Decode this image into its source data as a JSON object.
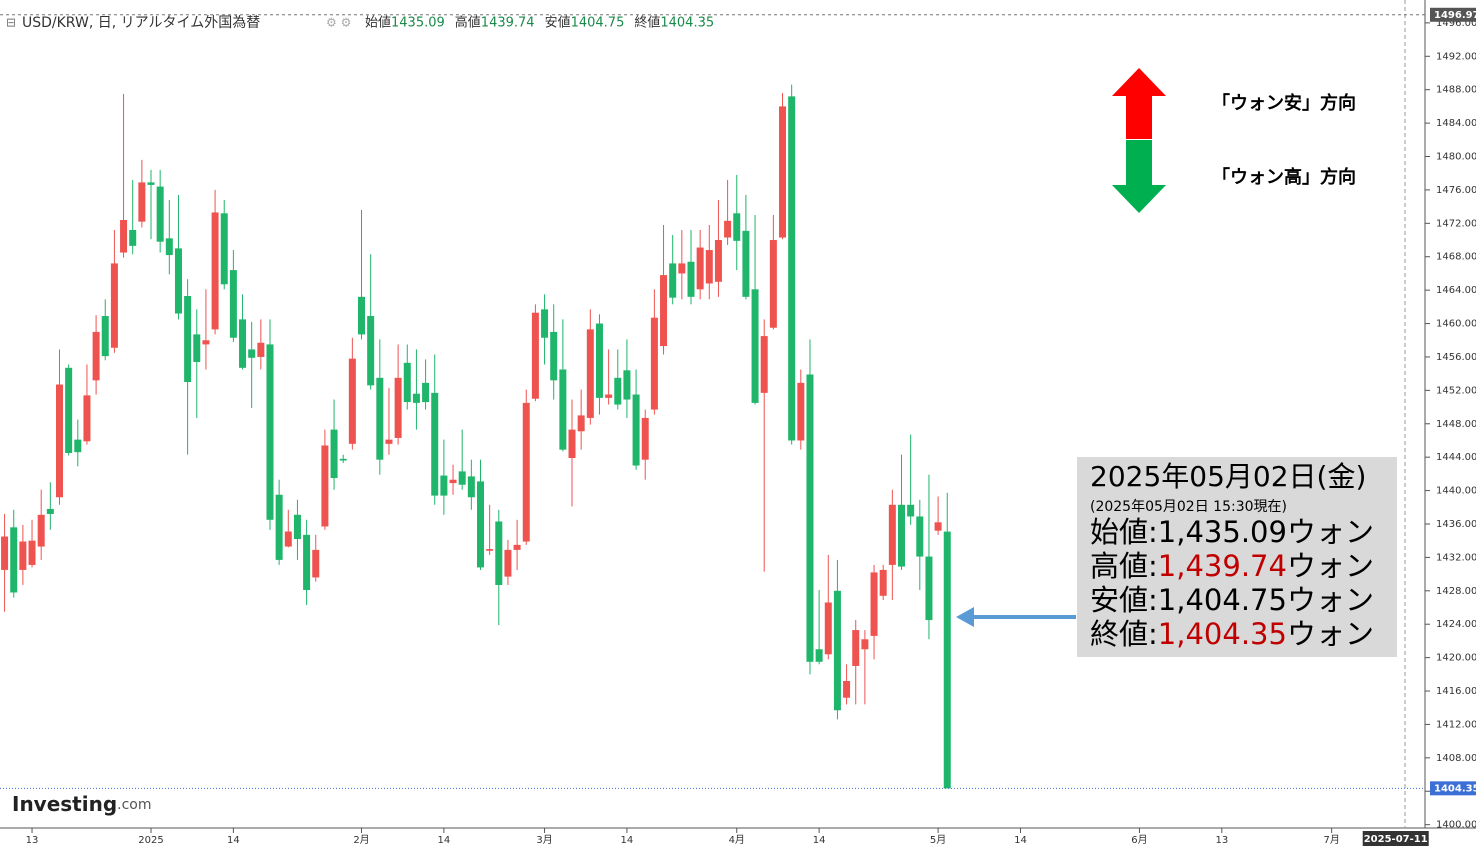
{
  "chart_data": {
    "type": "candlestick",
    "title": "USD/KRW, 日, リアルタイム外国為替",
    "quote_labels": [
      "始値",
      "高値",
      "安値",
      "終値"
    ],
    "x": [
      0,
      1,
      2,
      3,
      4,
      5,
      6,
      7,
      8,
      9,
      10,
      11,
      12,
      13,
      14,
      15,
      16,
      17,
      18,
      19,
      20,
      21,
      22,
      23,
      24,
      25,
      26,
      27,
      28,
      29,
      30,
      31,
      32,
      33,
      34,
      35,
      36,
      37,
      38,
      39,
      40,
      41,
      42,
      43,
      44,
      45,
      46,
      47,
      48,
      49,
      50,
      51,
      52,
      53,
      54,
      55,
      56,
      57,
      58,
      59,
      60,
      61,
      62,
      63,
      64,
      65,
      66,
      67,
      68,
      69,
      70,
      71,
      72,
      73,
      74,
      75,
      76,
      77,
      78,
      79,
      80,
      81,
      82,
      83,
      84,
      85,
      86,
      87,
      88,
      89,
      90,
      91,
      92,
      93,
      94,
      95,
      96,
      97,
      98,
      99,
      100,
      101,
      102,
      103
    ],
    "ohlc": [
      [
        1430.5,
        1437.2,
        1425.5,
        1434.5
      ],
      [
        1435.6,
        1437.7,
        1427.2,
        1427.8
      ],
      [
        1430.5,
        1435.9,
        1428.7,
        1433.9
      ],
      [
        1431.1,
        1436.5,
        1430.8,
        1434.0
      ],
      [
        1433.3,
        1440.1,
        1431.7,
        1437.1
      ],
      [
        1437.8,
        1441.0,
        1435.3,
        1437.2
      ],
      [
        1439.2,
        1456.9,
        1438.3,
        1452.7
      ],
      [
        1454.7,
        1455.1,
        1444.2,
        1444.5
      ],
      [
        1446.1,
        1448.5,
        1442.9,
        1444.6
      ],
      [
        1445.9,
        1455.1,
        1445.5,
        1451.4
      ],
      [
        1453.2,
        1461.0,
        1451.5,
        1459.0
      ],
      [
        1460.9,
        1462.9,
        1455.6,
        1456.1
      ],
      [
        1457.1,
        1471.2,
        1456.5,
        1467.2
      ],
      [
        1468.5,
        1487.5,
        1467.9,
        1472.4
      ],
      [
        1471.2,
        1477.2,
        1468.3,
        1469.3
      ],
      [
        1472.2,
        1479.6,
        1471.5,
        1476.9
      ],
      [
        1476.9,
        1478.4,
        1470.1,
        1476.6
      ],
      [
        1476.4,
        1478.4,
        1468.5,
        1469.8
      ],
      [
        1470.2,
        1474.8,
        1465.9,
        1468.2
      ],
      [
        1469.0,
        1475.4,
        1460.5,
        1461.2
      ],
      [
        1463.3,
        1465.3,
        1444.3,
        1453.0
      ],
      [
        1458.7,
        1461.7,
        1448.7,
        1455.4
      ],
      [
        1457.5,
        1464.1,
        1454.5,
        1458.0
      ],
      [
        1459.3,
        1476.0,
        1458.7,
        1473.3
      ],
      [
        1473.2,
        1474.8,
        1464.1,
        1464.7
      ],
      [
        1466.4,
        1468.8,
        1457.8,
        1458.3
      ],
      [
        1460.5,
        1463.5,
        1454.5,
        1454.7
      ],
      [
        1456.9,
        1460.2,
        1449.9,
        1455.9
      ],
      [
        1456.0,
        1460.5,
        1454.5,
        1457.7
      ],
      [
        1457.5,
        1460.5,
        1435.3,
        1436.5
      ],
      [
        1439.5,
        1441.3,
        1431.1,
        1431.7
      ],
      [
        1433.3,
        1437.7,
        1433.2,
        1435.1
      ],
      [
        1437.1,
        1438.9,
        1431.7,
        1434.2
      ],
      [
        1434.7,
        1436.5,
        1426.3,
        1428.1
      ],
      [
        1429.6,
        1434.7,
        1429.1,
        1432.9
      ],
      [
        1435.7,
        1447.3,
        1435.3,
        1445.4
      ],
      [
        1447.3,
        1450.9,
        1440.1,
        1441.5
      ],
      [
        1443.8,
        1444.3,
        1443.3,
        1443.6
      ],
      [
        1445.6,
        1458.3,
        1444.9,
        1455.8
      ],
      [
        1463.2,
        1473.6,
        1458.1,
        1458.7
      ],
      [
        1460.9,
        1468.3,
        1452.1,
        1452.6
      ],
      [
        1453.5,
        1458.1,
        1441.9,
        1443.7
      ],
      [
        1445.6,
        1452.3,
        1444.3,
        1446.1
      ],
      [
        1446.3,
        1457.5,
        1445.5,
        1453.5
      ],
      [
        1455.3,
        1457.5,
        1449.7,
        1450.6
      ],
      [
        1451.6,
        1456.9,
        1447.3,
        1450.5
      ],
      [
        1452.9,
        1455.7,
        1449.7,
        1450.6
      ],
      [
        1451.7,
        1456.3,
        1438.3,
        1439.4
      ],
      [
        1441.8,
        1446.1,
        1437.1,
        1439.4
      ],
      [
        1440.9,
        1443.1,
        1439.5,
        1441.3
      ],
      [
        1442.3,
        1447.3,
        1440.1,
        1440.7
      ],
      [
        1441.7,
        1443.7,
        1437.7,
        1439.2
      ],
      [
        1441.1,
        1443.7,
        1430.5,
        1430.8
      ],
      [
        1432.8,
        1438.3,
        1432.3,
        1433.0
      ],
      [
        1436.3,
        1437.7,
        1423.9,
        1428.7
      ],
      [
        1429.7,
        1434.1,
        1428.7,
        1432.9
      ],
      [
        1432.9,
        1436.5,
        1430.5,
        1433.5
      ],
      [
        1433.9,
        1452.1,
        1433.5,
        1450.5
      ],
      [
        1451.0,
        1462.3,
        1450.7,
        1461.3
      ],
      [
        1461.7,
        1463.5,
        1455.1,
        1458.3
      ],
      [
        1459.0,
        1462.3,
        1450.9,
        1453.2
      ],
      [
        1454.5,
        1460.5,
        1444.7,
        1444.9
      ],
      [
        1443.9,
        1450.9,
        1438.1,
        1447.3
      ],
      [
        1447.1,
        1452.1,
        1444.9,
        1449.0
      ],
      [
        1448.7,
        1461.7,
        1447.9,
        1459.3
      ],
      [
        1460.0,
        1461.1,
        1449.1,
        1451.1
      ],
      [
        1451.1,
        1456.9,
        1450.3,
        1451.5
      ],
      [
        1453.5,
        1456.9,
        1449.7,
        1450.3
      ],
      [
        1454.4,
        1458.1,
        1448.7,
        1450.9
      ],
      [
        1451.5,
        1454.5,
        1442.5,
        1443.0
      ],
      [
        1443.7,
        1449.7,
        1441.3,
        1448.7
      ],
      [
        1449.7,
        1464.1,
        1449.1,
        1460.7
      ],
      [
        1457.3,
        1471.8,
        1456.3,
        1465.8
      ],
      [
        1467.2,
        1470.6,
        1462.3,
        1463.1
      ],
      [
        1466.0,
        1471.2,
        1462.9,
        1467.2
      ],
      [
        1467.4,
        1471.2,
        1462.3,
        1463.2
      ],
      [
        1464.1,
        1471.2,
        1462.9,
        1469.1
      ],
      [
        1464.8,
        1471.8,
        1462.9,
        1468.8
      ],
      [
        1465.0,
        1474.8,
        1463.2,
        1470.0
      ],
      [
        1470.3,
        1477.2,
        1469.4,
        1472.3
      ],
      [
        1473.2,
        1477.8,
        1466.4,
        1469.9
      ],
      [
        1471.1,
        1475.4,
        1462.9,
        1463.2
      ],
      [
        1464.1,
        1473.0,
        1450.3,
        1450.5
      ],
      [
        1451.7,
        1460.5,
        1430.3,
        1458.5
      ],
      [
        1459.5,
        1473.0,
        1459.3,
        1470.0
      ],
      [
        1470.3,
        1487.6,
        1470.1,
        1486.0
      ],
      [
        1487.2,
        1488.6,
        1445.5,
        1446.0
      ],
      [
        1446.0,
        1454.5,
        1444.9,
        1452.9
      ],
      [
        1453.9,
        1458.1,
        1418.0,
        1419.5
      ],
      [
        1421.0,
        1428.1,
        1419.2,
        1419.5
      ],
      [
        1420.4,
        1432.3,
        1419.8,
        1426.6
      ],
      [
        1428.0,
        1431.7,
        1412.6,
        1413.7
      ],
      [
        1415.2,
        1419.2,
        1414.4,
        1417.2
      ],
      [
        1419.0,
        1424.5,
        1414.4,
        1423.3
      ],
      [
        1421.0,
        1423.3,
        1414.4,
        1422.2
      ],
      [
        1422.6,
        1431.1,
        1419.8,
        1430.2
      ],
      [
        1427.4,
        1431.1,
        1426.9,
        1430.5
      ],
      [
        1431.1,
        1440.1,
        1426.9,
        1438.3
      ],
      [
        1438.3,
        1444.3,
        1430.5,
        1430.9
      ],
      [
        1438.3,
        1446.7,
        1435.9,
        1436.9
      ],
      [
        1436.9,
        1438.9,
        1428.1,
        1432.1
      ],
      [
        1432.1,
        1441.9,
        1422.2,
        1424.5
      ],
      [
        1435.2,
        1439.3,
        1434.7,
        1436.2
      ],
      [
        1435.09,
        1439.74,
        1404.75,
        1404.35
      ]
    ],
    "up_color": "#ef5350",
    "down_color": "#1fb56b",
    "xlim": [
      -0.5,
      155.2
    ],
    "xticks": [
      {
        "value": 3,
        "label": "13"
      },
      {
        "value": 16,
        "label": "2025"
      },
      {
        "value": 25,
        "label": "14"
      },
      {
        "value": 39,
        "label": "2月"
      },
      {
        "value": 48,
        "label": "14"
      },
      {
        "value": 59,
        "label": "3月"
      },
      {
        "value": 68,
        "label": "14"
      },
      {
        "value": 80,
        "label": "4月"
      },
      {
        "value": 89,
        "label": "14"
      },
      {
        "value": 102,
        "label": "5月"
      },
      {
        "value": 111,
        "label": "14"
      },
      {
        "value": 124,
        "label": "6月"
      },
      {
        "value": 133,
        "label": "13"
      },
      {
        "value": 145,
        "label": "7月"
      }
    ],
    "x_marker": {
      "value": 152,
      "label": "2025-07-11"
    },
    "ylim": [
      1399.6,
      1498.5
    ],
    "yticks": [
      {
        "value": 1400,
        "label": "1400.00"
      },
      {
        "value": 1404,
        "label": "1404.00"
      },
      {
        "value": 1408,
        "label": "1408.00"
      },
      {
        "value": 1412,
        "label": "1412.00"
      },
      {
        "value": 1416,
        "label": "1416.00"
      },
      {
        "value": 1420,
        "label": "1420.00"
      },
      {
        "value": 1424,
        "label": "1424.00"
      },
      {
        "value": 1428,
        "label": "1428.00"
      },
      {
        "value": 1432,
        "label": "1432.00"
      },
      {
        "value": 1436,
        "label": "1436.00"
      },
      {
        "value": 1440,
        "label": "1440.00"
      },
      {
        "value": 1444,
        "label": "1444.00"
      },
      {
        "value": 1448,
        "label": "1448.00"
      },
      {
        "value": 1452,
        "label": "1452.00"
      },
      {
        "value": 1456,
        "label": "1456.00"
      },
      {
        "value": 1460,
        "label": "1460.00"
      },
      {
        "value": 1464,
        "label": "1464.00"
      },
      {
        "value": 1468,
        "label": "1468.00"
      },
      {
        "value": 1472,
        "label": "1472.00"
      },
      {
        "value": 1476,
        "label": "1476.00"
      },
      {
        "value": 1480,
        "label": "1480.00"
      },
      {
        "value": 1484,
        "label": "1484.00"
      },
      {
        "value": 1488,
        "label": "1488.00"
      },
      {
        "value": 1492,
        "label": "1492.00"
      },
      {
        "value": 1496,
        "label": "1496.00"
      }
    ],
    "price_line": 1496.97,
    "grid": false,
    "legend": {
      "up": "「ウォン安」方向",
      "down": "「ウォン高」方向"
    },
    "info_box": {
      "date": "2025年05月02日(金)",
      "note": "(2025年05月02日 15:30現在)",
      "lines": [
        {
          "label": "始値",
          "value": "1,435.09",
          "unit": "ウォン",
          "color": "#000000"
        },
        {
          "label": "高値",
          "value": "1,439.74",
          "unit": "ウォン",
          "color": "#c00000"
        },
        {
          "label": "安値",
          "value": "1,404.75",
          "unit": "ウォン",
          "color": "#000000"
        },
        {
          "label": "終値",
          "value": "1,404.35",
          "unit": "ウォン",
          "color": "#c00000"
        }
      ]
    },
    "logo": {
      "brand": "Investing",
      "suffix": ".com"
    }
  }
}
